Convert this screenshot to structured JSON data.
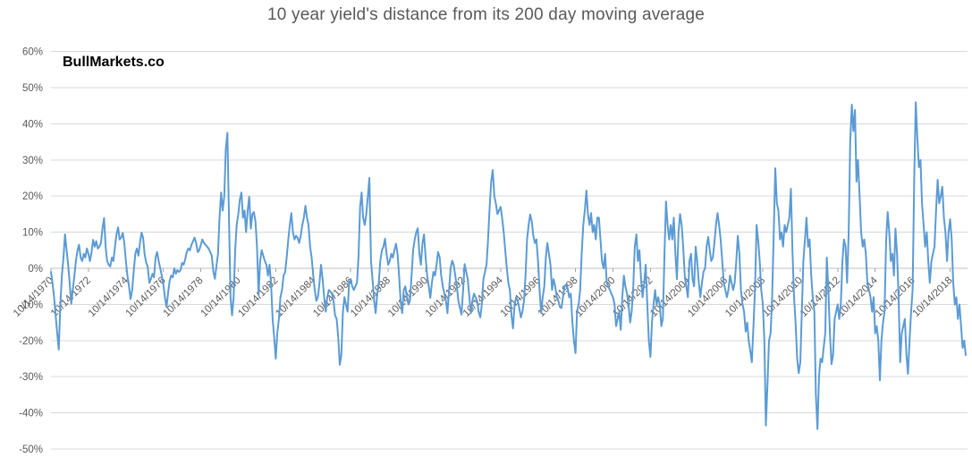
{
  "watermark": "BullMarkets.co",
  "chart_data": {
    "type": "line",
    "title": "10 year yield's distance from its 200 day moving average",
    "legend": "none",
    "grid": "horizontal",
    "colors": {
      "series": "#5B9BD5",
      "gridline": "#D9D9D9",
      "axis_line": "#BFBFBF",
      "tick_mark": "#A6A6A6",
      "text": "#595959",
      "watermark": "#000000"
    },
    "y_axis": {
      "min": -50,
      "max": 60,
      "step": 10,
      "tick_labels": [
        "60%",
        "50%",
        "40%",
        "30%",
        "20%",
        "10%",
        "0%",
        "-10%",
        "-20%",
        "-30%",
        "-40%",
        "-50%"
      ]
    },
    "x_axis": {
      "months_per_tick": 24,
      "label_rotation_deg": 45,
      "tick_labels": [
        "10/14/1970",
        "10/14/1972",
        "10/14/1974",
        "10/14/1976",
        "10/14/1978",
        "10/14/1980",
        "10/14/1982",
        "10/14/1984",
        "10/14/1986",
        "10/14/1988",
        "10/14/1990",
        "10/14/1992",
        "10/14/1994",
        "10/14/1996",
        "10/14/1998",
        "10/14/2000",
        "10/14/2002",
        "10/14/2004",
        "10/14/2006",
        "10/14/2008",
        "10/14/2010",
        "10/14/2012",
        "10/14/2014",
        "10/14/2016",
        "10/14/2018"
      ]
    },
    "series": [
      {
        "start": "10/14/1970",
        "frequency": "monthly",
        "unit": "%",
        "values": [
          -1,
          -4,
          -8,
          -13,
          -18,
          -22.5,
          -10,
          -2,
          3,
          9.4,
          5,
          1,
          -4,
          -9.8,
          -6,
          -2,
          2,
          5,
          6.5,
          3,
          2,
          4,
          3,
          5.5,
          4,
          2,
          4.5,
          7.9,
          6,
          7.5,
          5.5,
          6,
          7,
          11,
          13.9,
          6,
          2,
          1,
          0.5,
          3,
          2,
          6,
          9.5,
          11.3,
          8,
          8.5,
          9.8,
          7,
          2,
          -2,
          -5,
          -8.5,
          -6,
          -1,
          4,
          5.5,
          3.5,
          7,
          9.9,
          8.5,
          4,
          1.5,
          0.5,
          -4,
          -3,
          -1.5,
          -2.5,
          3,
          4.5,
          2,
          0,
          -2,
          -4.5,
          -8,
          -10.7,
          -7,
          -3.5,
          -2,
          -2.5,
          0,
          -1.5,
          -0.5,
          -1,
          -0.5,
          1.5,
          1,
          2.5,
          4.5,
          5.5,
          5,
          6.5,
          7.5,
          8.5,
          7,
          4.5,
          5,
          6.5,
          8,
          7,
          6.5,
          6,
          5.5,
          4.5,
          3.5,
          -1,
          -2.9,
          0.5,
          4,
          14,
          21,
          16,
          20,
          33,
          37.5,
          15,
          -8,
          -13,
          -8,
          5,
          12,
          15,
          19,
          21,
          14,
          16,
          10,
          16,
          19.8,
          11,
          15,
          15.6,
          13,
          6,
          -7.4,
          2,
          5,
          3.5,
          2,
          1,
          -2,
          1,
          -4,
          -14,
          -19,
          -25,
          -18,
          -14,
          -8,
          -6,
          -2,
          -1,
          3,
          8,
          12,
          15.3,
          10,
          8,
          9,
          8.5,
          7,
          9,
          12,
          14,
          17.3,
          14,
          12,
          6,
          3,
          -2,
          -6,
          -9,
          -8,
          -4,
          1,
          -3,
          -8,
          -12,
          -8,
          -6,
          -6.5,
          -7,
          -9,
          -13,
          -14,
          -19,
          -26.7,
          -24,
          -12,
          -8,
          -10,
          -12,
          -4,
          -3,
          -5,
          -6,
          -5,
          -4,
          3,
          17,
          21,
          14,
          12,
          15,
          20,
          25,
          2,
          -3,
          -9,
          -12.4,
          -7,
          -4,
          2,
          5,
          6,
          8.2,
          4,
          1,
          2,
          4,
          3,
          5,
          6.8,
          4,
          -2,
          -9,
          -12.4,
          -6,
          -5,
          -8,
          -10,
          -9,
          -2,
          5,
          8,
          10,
          11.1,
          4,
          1,
          7,
          9.4,
          3,
          -2,
          -5,
          -8.2,
          -4,
          -1,
          -2,
          1,
          4.5,
          3,
          -2,
          -5,
          -7,
          -9,
          -12.4,
          -6,
          0,
          2.1,
          1,
          -2,
          -5,
          -9,
          -11,
          -12.8,
          -6,
          1.2,
          -1,
          -3,
          -8,
          -12.4,
          -9,
          -7,
          -8,
          -9,
          -12,
          -13.6,
          -10,
          -3,
          -1,
          1,
          8,
          17,
          24,
          27.2,
          20,
          18,
          15,
          16,
          17,
          14,
          10,
          5,
          0,
          -4,
          -6,
          -13,
          -16.6,
          -10,
          -8,
          -9,
          -11,
          -13.6,
          -12,
          -9,
          -2,
          8,
          12,
          14.9,
          13,
          9,
          7,
          8,
          2,
          -6,
          -12.4,
          -8,
          -5,
          3,
          7,
          4,
          1,
          -6,
          -3,
          -5,
          -8,
          -9,
          -10.7,
          -11,
          -8,
          -5,
          -4.5,
          -5.5,
          -8,
          -7,
          -14.9,
          -20,
          -23.5,
          -12,
          -10,
          -6,
          4,
          12,
          16,
          21.5,
          15,
          12,
          15.3,
          10,
          12,
          8,
          14,
          14,
          8,
          2,
          0,
          4,
          -4,
          -5,
          -6,
          -7,
          -8,
          -9.9,
          -16,
          -14,
          -12,
          -17,
          -8,
          -2,
          -5,
          -7,
          -10,
          -15,
          -12,
          -5,
          6,
          9.4,
          2,
          5,
          -3,
          -8,
          -4,
          1,
          -10,
          -20,
          -24.5,
          -15,
          -10,
          -6,
          -10,
          -8,
          -10,
          -16,
          -14,
          4,
          18.5,
          12,
          8,
          12,
          8,
          14,
          4,
          -3,
          10,
          15,
          12,
          6,
          -2,
          -5,
          -8,
          2,
          4,
          -3,
          -5,
          6,
          2,
          -4,
          -8,
          -4,
          -1,
          0,
          6,
          8.7,
          5,
          2,
          3,
          7,
          12,
          15.3,
          12,
          8,
          2,
          -4,
          -6,
          -8,
          -6,
          -2,
          -4,
          -6,
          -4,
          2,
          9,
          4,
          -6,
          -10,
          -12,
          -17.5,
          -15,
          -20,
          -23,
          -26,
          -16,
          -6,
          12,
          8,
          2,
          -6,
          -10,
          -20,
          -43.5,
          -32,
          -20,
          -18,
          -8,
          10,
          27.7,
          18,
          16,
          8,
          10,
          6,
          12,
          10,
          12,
          14,
          22,
          5,
          -8,
          -15,
          -25,
          -29,
          -26,
          -12,
          2,
          8,
          14,
          6,
          8,
          -2,
          -8,
          -12,
          -35,
          -44.5,
          -30,
          -25,
          -26,
          -22,
          -18,
          3,
          -6,
          -18,
          -26.5,
          -24,
          -14,
          -12,
          -10,
          -14,
          -10,
          2,
          8,
          6,
          -4,
          10,
          35,
          45.3,
          38,
          43.8,
          24,
          30,
          20,
          10,
          6,
          8,
          4,
          -4,
          -6,
          -8,
          -12,
          -8,
          -18,
          -16,
          -20,
          -31,
          -20,
          -15,
          -12,
          8,
          15.6,
          10,
          2,
          4,
          -2,
          11,
          4,
          -8,
          -26,
          -18,
          -16,
          -14,
          -24,
          -29.2,
          -20,
          -12,
          -6,
          25,
          46,
          36,
          28,
          30,
          18,
          12,
          6,
          10,
          2,
          -4,
          2,
          4,
          6,
          16,
          24.5,
          18,
          20,
          22.6,
          14,
          10,
          2,
          10,
          13.6,
          8,
          -4,
          -10,
          -8,
          -14,
          -10,
          -16,
          -22,
          -20,
          -24
        ]
      }
    ]
  }
}
